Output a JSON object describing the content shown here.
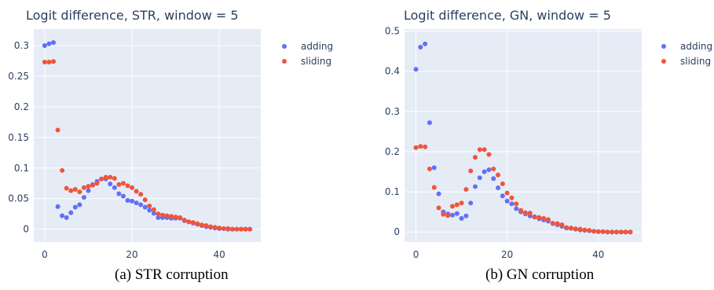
{
  "chart_data": [
    {
      "type": "scatter",
      "title": "Logit difference, STR, window = 5",
      "caption": "(a) STR corruption",
      "xlabel": "",
      "ylabel": "",
      "xlim": [
        -2.5,
        49.5
      ],
      "ylim": [
        -0.021,
        0.327
      ],
      "x_ticks": [
        0,
        20,
        40
      ],
      "x_tick_labels": [
        "0",
        "20",
        "40"
      ],
      "y_ticks": [
        0,
        0.05,
        0.1,
        0.15,
        0.2,
        0.25,
        0.3
      ],
      "y_tick_labels": [
        "0",
        "0.05",
        "0.1",
        "0.15",
        "0.2",
        "0.25",
        "0.3"
      ],
      "grid": true,
      "legend_position": "top-right-outside",
      "x": [
        0,
        1,
        2,
        3,
        4,
        5,
        6,
        7,
        8,
        9,
        10,
        11,
        12,
        13,
        14,
        15,
        16,
        17,
        18,
        19,
        20,
        21,
        22,
        23,
        24,
        25,
        26,
        27,
        28,
        29,
        30,
        31,
        32,
        33,
        34,
        35,
        36,
        37,
        38,
        39,
        40,
        41,
        42,
        43,
        44,
        45,
        46,
        47
      ],
      "series": [
        {
          "name": "adding",
          "color": "#636efa",
          "values": [
            0.3,
            0.303,
            0.305,
            0.037,
            0.022,
            0.019,
            0.027,
            0.036,
            0.04,
            0.052,
            0.063,
            0.073,
            0.078,
            0.082,
            0.082,
            0.074,
            0.068,
            0.058,
            0.054,
            0.047,
            0.046,
            0.043,
            0.04,
            0.036,
            0.031,
            0.026,
            0.019,
            0.019,
            0.019,
            0.018,
            0.018,
            0.018,
            0.014,
            0.012,
            0.01,
            0.008,
            0.006,
            0.004,
            0.003,
            0.002,
            0.001,
            0.001,
            0.0,
            0.0,
            0.0,
            0.0,
            0.0,
            0.0
          ]
        },
        {
          "name": "sliding",
          "color": "#ef553b",
          "values": [
            0.273,
            0.273,
            0.274,
            0.162,
            0.096,
            0.067,
            0.063,
            0.065,
            0.061,
            0.068,
            0.07,
            0.072,
            0.075,
            0.082,
            0.085,
            0.085,
            0.083,
            0.073,
            0.075,
            0.071,
            0.068,
            0.062,
            0.057,
            0.048,
            0.038,
            0.032,
            0.025,
            0.023,
            0.022,
            0.021,
            0.02,
            0.019,
            0.015,
            0.012,
            0.011,
            0.009,
            0.007,
            0.006,
            0.004,
            0.003,
            0.002,
            0.001,
            0.001,
            0.0,
            0.0,
            0.0,
            0.0,
            0.0
          ]
        }
      ]
    },
    {
      "type": "scatter",
      "title": "Logit difference, GN, window = 5",
      "caption": "(b) GN corruption",
      "xlabel": "",
      "ylabel": "",
      "xlim": [
        -2.5,
        49.5
      ],
      "ylim": [
        -0.025,
        0.505
      ],
      "x_ticks": [
        0,
        20,
        40
      ],
      "x_tick_labels": [
        "0",
        "20",
        "40"
      ],
      "y_ticks": [
        0,
        0.1,
        0.2,
        0.3,
        0.4,
        0.5
      ],
      "y_tick_labels": [
        "0",
        "0.1",
        "0.2",
        "0.3",
        "0.4",
        "0.5"
      ],
      "grid": true,
      "legend_position": "top-right-outside",
      "x": [
        0,
        1,
        2,
        3,
        4,
        5,
        6,
        7,
        8,
        9,
        10,
        11,
        12,
        13,
        14,
        15,
        16,
        17,
        18,
        19,
        20,
        21,
        22,
        23,
        24,
        25,
        26,
        27,
        28,
        29,
        30,
        31,
        32,
        33,
        34,
        35,
        36,
        37,
        38,
        39,
        40,
        41,
        42,
        43,
        44,
        45,
        46,
        47
      ],
      "series": [
        {
          "name": "adding",
          "color": "#636efa",
          "values": [
            0.405,
            0.46,
            0.468,
            0.272,
            0.16,
            0.095,
            0.05,
            0.045,
            0.042,
            0.046,
            0.034,
            0.04,
            0.072,
            0.113,
            0.135,
            0.15,
            0.155,
            0.133,
            0.11,
            0.09,
            0.077,
            0.07,
            0.058,
            0.05,
            0.045,
            0.04,
            0.038,
            0.033,
            0.03,
            0.027,
            0.021,
            0.018,
            0.014,
            0.01,
            0.009,
            0.007,
            0.005,
            0.004,
            0.003,
            0.002,
            0.001,
            0.001,
            0.0,
            0.0,
            0.0,
            0.0,
            0.0,
            0.0
          ]
        },
        {
          "name": "sliding",
          "color": "#ef553b",
          "values": [
            0.21,
            0.213,
            0.212,
            0.157,
            0.111,
            0.06,
            0.044,
            0.041,
            0.064,
            0.068,
            0.072,
            0.106,
            0.152,
            0.186,
            0.205,
            0.205,
            0.193,
            0.157,
            0.142,
            0.12,
            0.097,
            0.085,
            0.07,
            0.054,
            0.048,
            0.047,
            0.037,
            0.036,
            0.034,
            0.031,
            0.022,
            0.021,
            0.018,
            0.011,
            0.01,
            0.008,
            0.007,
            0.005,
            0.004,
            0.002,
            0.001,
            0.001,
            0.0,
            0.0,
            0.0,
            0.0,
            0.0,
            0.0
          ]
        }
      ]
    }
  ]
}
